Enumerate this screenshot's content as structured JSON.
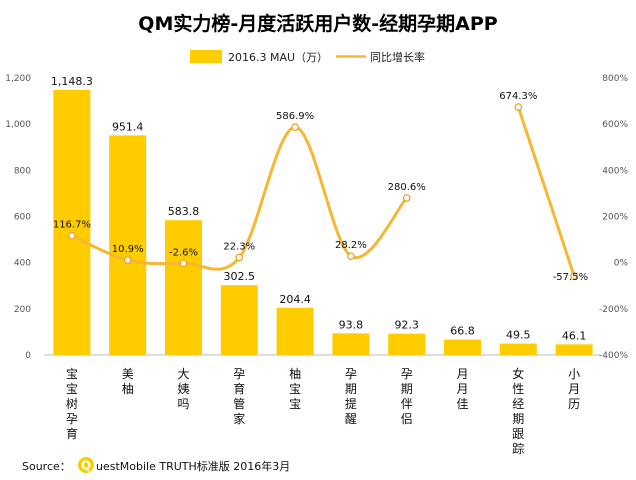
{
  "chart_data": {
    "type": "bar",
    "title": "QM实力榜-月度活跃用户数-经期孕期APP",
    "categories": [
      "宝宝树孕育",
      "美柚",
      "大姨吗",
      "孕育管家",
      "柚宝宝",
      "孕期提醒",
      "孕期伴侣",
      "月月佳",
      "女性经期跟踪",
      "小月历"
    ],
    "series": [
      {
        "name": "2016.3 MAU（万）",
        "kind": "bar",
        "axis": "left",
        "values": [
          1148.3,
          951.4,
          583.8,
          302.5,
          204.4,
          93.8,
          92.3,
          66.8,
          49.5,
          46.1
        ],
        "labels": [
          "1,148.3",
          "951.4",
          "583.8",
          "302.5",
          "204.4",
          "93.8",
          "92.3",
          "66.8",
          "49.5",
          "46.1"
        ]
      },
      {
        "name": "同比增长率",
        "kind": "line",
        "axis": "right",
        "segments": [
          {
            "categories": [
              "宝宝树孕育",
              "美柚",
              "大姨吗",
              "孕育管家",
              "柚宝宝",
              "孕期提醒",
              "孕期伴侣"
            ],
            "values": [
              116.7,
              10.9,
              -2.6,
              22.3,
              586.9,
              28.2,
              280.6
            ],
            "labels": [
              "116.7%",
              "10.9%",
              "-2.6%",
              "22.3%",
              "586.9%",
              "28.2%",
              "280.6%"
            ]
          },
          {
            "categories": [
              "女性经期跟踪",
              "小月历"
            ],
            "values": [
              674.3,
              -57.5
            ],
            "labels": [
              "674.3%",
              "-57.5%"
            ]
          }
        ]
      }
    ],
    "y_left": {
      "min": 0,
      "max": 1200,
      "ticks": [
        "0",
        "200",
        "400",
        "600",
        "800",
        "1,000",
        "1,200"
      ]
    },
    "y_right": {
      "min": -400,
      "max": 800,
      "ticks": [
        "-400%",
        "-200%",
        "0%",
        "200%",
        "400%",
        "600%",
        "800%"
      ]
    },
    "grid": false,
    "legend_position": "top",
    "colors": {
      "bar": "#FFCC00",
      "line": "#F7B733",
      "text": "#111111"
    }
  },
  "source": {
    "prefix": "Source：",
    "logo_letter": "Q",
    "text": "uestMobile TRUTH标准版 2016年3月"
  }
}
